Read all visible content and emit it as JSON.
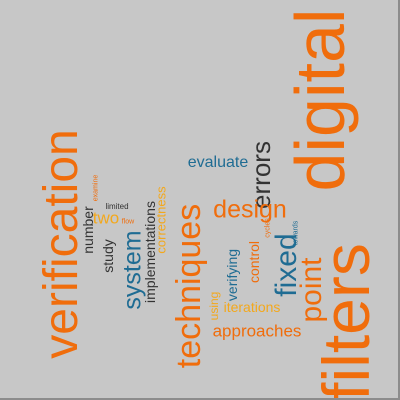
{
  "words": {
    "filters": "filters",
    "digital": "digital",
    "verification": "verification",
    "techniques": "techniques",
    "point": "point",
    "fixed": "fixed",
    "errors": "errors",
    "design": "design",
    "system": "system",
    "approaches": "approaches",
    "evaluate": "evaluate",
    "two": "two",
    "number": "number",
    "study": "study",
    "implementations": "implementations",
    "correctness": "correctness",
    "control": "control",
    "verifying": "verifying",
    "iterations": "iterations",
    "using": "using",
    "limited": "limited",
    "flow": "flow",
    "examine": "examine",
    "cycles": "cycles",
    "towards": "towards"
  },
  "colors": {
    "background": "#c7c7c7",
    "orange": "#f06d0c",
    "gold": "#f3a81c",
    "blue": "#1f6c93",
    "dark": "#333333"
  }
}
